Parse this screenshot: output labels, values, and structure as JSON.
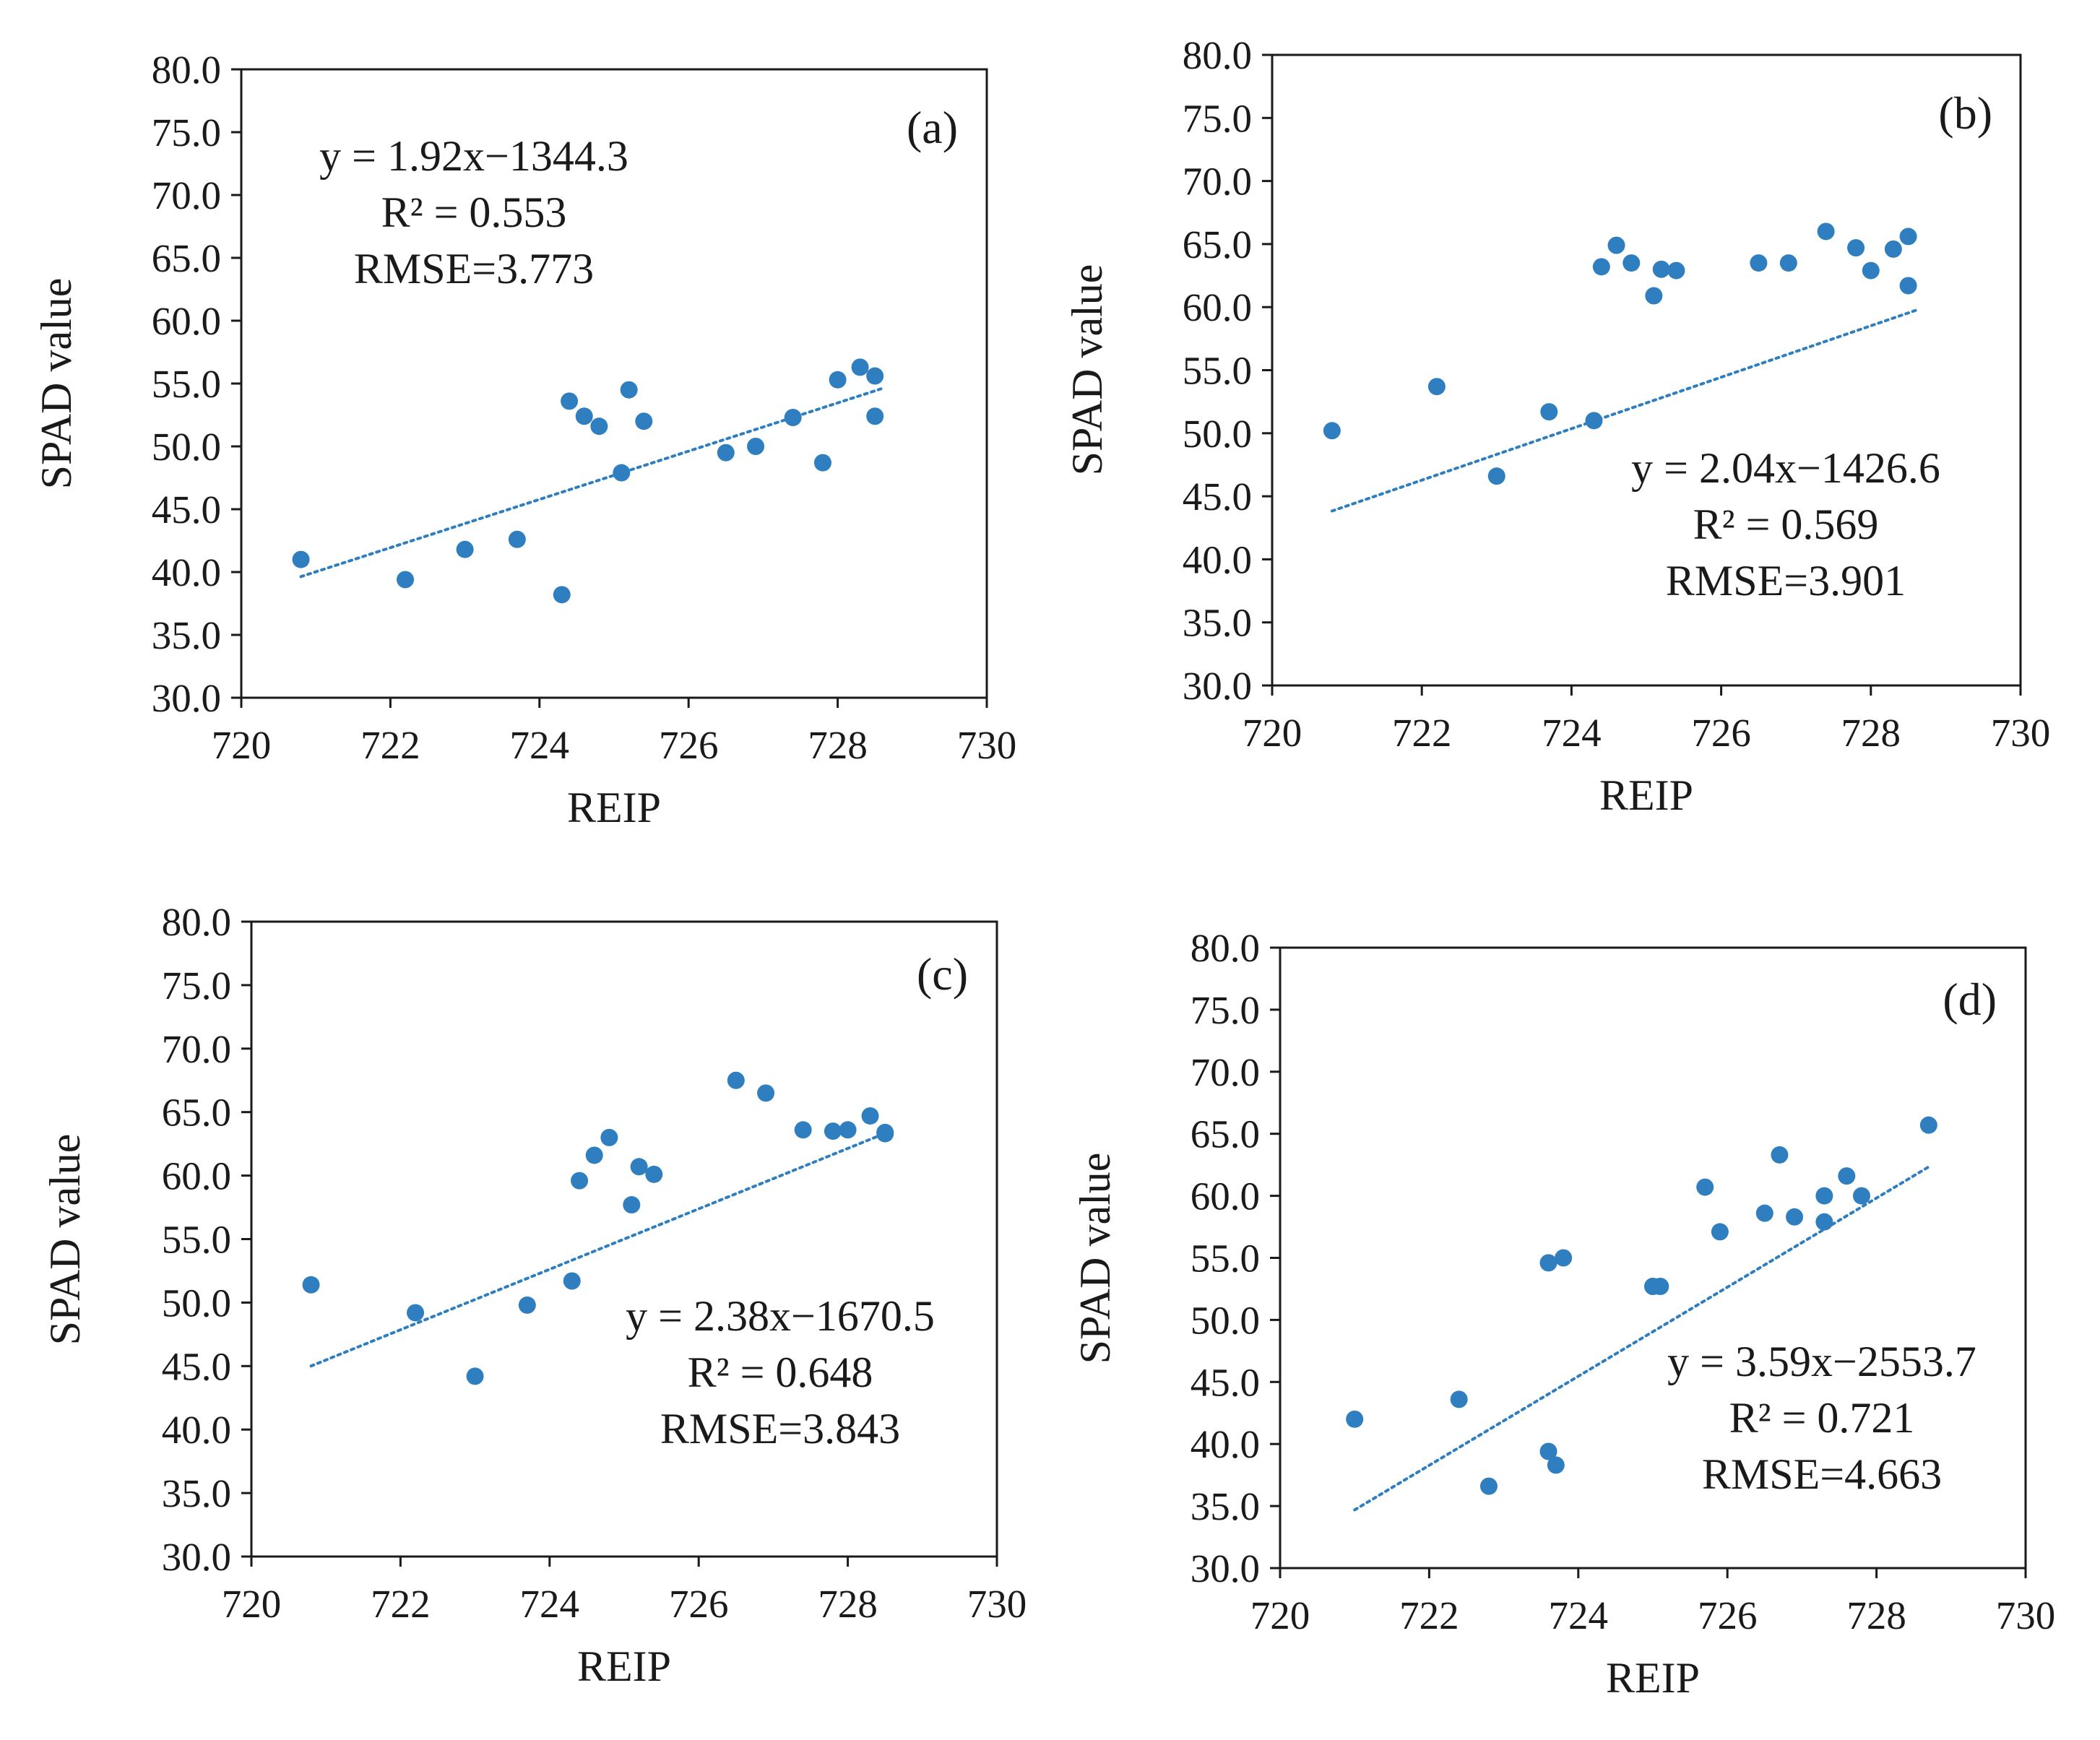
{
  "colors": {
    "point": "#2e7ec0",
    "trend": "#2e7ec0",
    "frame": "#1a1a1a"
  },
  "chart_data": [
    {
      "type": "scatter",
      "panel": "(a)",
      "xlabel": "REIP",
      "ylabel": "SPAD value",
      "xlim": [
        720,
        730
      ],
      "ylim": [
        30,
        80
      ],
      "xticks": [
        "720",
        "722",
        "724",
        "726",
        "728",
        "730"
      ],
      "yticks": [
        "30.0",
        "35.0",
        "40.0",
        "45.0",
        "50.0",
        "55.0",
        "60.0",
        "65.0",
        "70.0",
        "75.0",
        "80.0"
      ],
      "equation": "y = 1.92x−1344.3",
      "r2": "R² = 0.553",
      "rmse": "RMSE=3.773",
      "trendline": {
        "x": [
          720.8,
          728.6
        ],
        "slope": 1.92,
        "intercept": -1344.3
      },
      "points": [
        [
          720.8,
          41.0
        ],
        [
          722.2,
          39.4
        ],
        [
          723.0,
          41.8
        ],
        [
          723.7,
          42.6
        ],
        [
          724.3,
          38.2
        ],
        [
          724.4,
          53.6
        ],
        [
          724.6,
          52.4
        ],
        [
          724.8,
          51.6
        ],
        [
          725.1,
          47.9
        ],
        [
          725.2,
          54.5
        ],
        [
          725.4,
          52.0
        ],
        [
          726.5,
          49.5
        ],
        [
          726.9,
          50.0
        ],
        [
          727.4,
          52.3
        ],
        [
          727.8,
          48.7
        ],
        [
          728.0,
          55.3
        ],
        [
          728.3,
          56.3
        ],
        [
          728.5,
          55.6
        ],
        [
          728.5,
          52.4
        ]
      ]
    },
    {
      "type": "scatter",
      "panel": "(b)",
      "xlabel": "REIP",
      "ylabel": "SPAD value",
      "xlim": [
        720,
        730
      ],
      "ylim": [
        30,
        80
      ],
      "xticks": [
        "720",
        "722",
        "724",
        "726",
        "728",
        "730"
      ],
      "yticks": [
        "30.0",
        "35.0",
        "40.0",
        "45.0",
        "50.0",
        "55.0",
        "60.0",
        "65.0",
        "70.0",
        "75.0",
        "80.0"
      ],
      "equation": "y = 2.04x−1426.6",
      "r2": "R² = 0.569",
      "rmse": "RMSE=3.901",
      "trendline": {
        "x": [
          720.8,
          728.6
        ],
        "slope": 2.04,
        "intercept": -1426.6
      },
      "points": [
        [
          720.8,
          50.2
        ],
        [
          722.2,
          53.7
        ],
        [
          723.0,
          46.6
        ],
        [
          723.7,
          51.7
        ],
        [
          724.3,
          51.0
        ],
        [
          724.4,
          63.2
        ],
        [
          724.6,
          64.9
        ],
        [
          724.8,
          63.5
        ],
        [
          725.1,
          60.9
        ],
        [
          725.2,
          63.0
        ],
        [
          725.4,
          62.9
        ],
        [
          726.5,
          63.5
        ],
        [
          726.9,
          63.5
        ],
        [
          727.4,
          66.0
        ],
        [
          727.8,
          64.7
        ],
        [
          728.0,
          62.9
        ],
        [
          728.3,
          64.6
        ],
        [
          728.5,
          65.6
        ],
        [
          728.5,
          61.7
        ]
      ]
    },
    {
      "type": "scatter",
      "panel": "(c)",
      "xlabel": "REIP",
      "ylabel": "SPAD value",
      "xlim": [
        720,
        730
      ],
      "ylim": [
        30,
        80
      ],
      "xticks": [
        "720",
        "722",
        "724",
        "726",
        "728",
        "730"
      ],
      "yticks": [
        "30.0",
        "35.0",
        "40.0",
        "45.0",
        "50.0",
        "55.0",
        "60.0",
        "65.0",
        "70.0",
        "75.0",
        "80.0"
      ],
      "equation": "y = 2.38x−1670.5",
      "r2": "R² = 0.648",
      "rmse": "RMSE=3.843",
      "trendline": {
        "x": [
          720.8,
          728.6
        ],
        "slope": 2.38,
        "intercept": -1670.5
      },
      "points": [
        [
          720.8,
          51.4
        ],
        [
          722.2,
          49.2
        ],
        [
          723.0,
          44.2
        ],
        [
          723.7,
          49.8
        ],
        [
          724.3,
          51.7
        ],
        [
          724.4,
          59.6
        ],
        [
          724.6,
          61.6
        ],
        [
          724.8,
          63.0
        ],
        [
          725.1,
          57.7
        ],
        [
          725.2,
          60.7
        ],
        [
          725.4,
          60.1
        ],
        [
          726.5,
          67.5
        ],
        [
          726.9,
          66.5
        ],
        [
          727.4,
          63.6
        ],
        [
          727.8,
          63.5
        ],
        [
          728.0,
          63.6
        ],
        [
          728.3,
          64.7
        ],
        [
          728.5,
          63.3
        ],
        [
          728.5,
          63.4
        ]
      ]
    },
    {
      "type": "scatter",
      "panel": "(d)",
      "xlabel": "REIP",
      "ylabel": "SPAD value",
      "xlim": [
        720,
        730
      ],
      "ylim": [
        30,
        80
      ],
      "xticks": [
        "720",
        "722",
        "724",
        "726",
        "728",
        "730"
      ],
      "yticks": [
        "30.0",
        "35.0",
        "40.0",
        "45.0",
        "50.0",
        "55.0",
        "60.0",
        "65.0",
        "70.0",
        "75.0",
        "80.0"
      ],
      "equation": "y = 3.59x−2553.7",
      "r2": "R² = 0.721",
      "rmse": "RMSE=4.663",
      "trendline": {
        "x": [
          721.0,
          728.7
        ],
        "slope": 3.59,
        "intercept": -2553.7
      },
      "points": [
        [
          721.0,
          42.0
        ],
        [
          722.4,
          43.6
        ],
        [
          722.8,
          36.6
        ],
        [
          723.6,
          54.6
        ],
        [
          723.6,
          39.4
        ],
        [
          723.7,
          38.3
        ],
        [
          723.8,
          55.0
        ],
        [
          725.0,
          52.7
        ],
        [
          725.1,
          52.7
        ],
        [
          725.7,
          60.7
        ],
        [
          725.9,
          57.1
        ],
        [
          726.5,
          58.6
        ],
        [
          726.7,
          63.3
        ],
        [
          726.9,
          58.3
        ],
        [
          727.3,
          60.0
        ],
        [
          727.3,
          57.9
        ],
        [
          727.6,
          61.6
        ],
        [
          727.8,
          60.0
        ],
        [
          728.7,
          65.7
        ]
      ]
    }
  ]
}
